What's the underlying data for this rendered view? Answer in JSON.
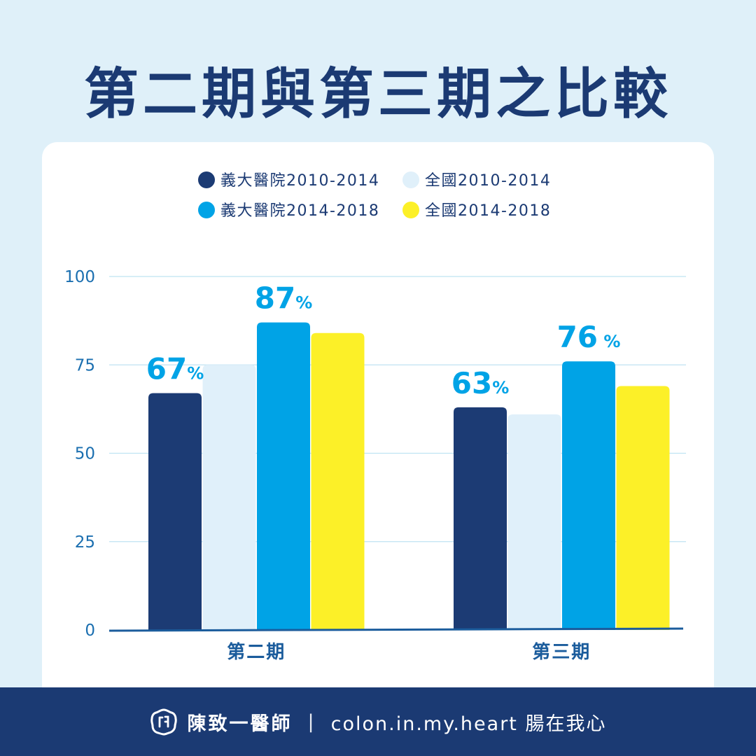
{
  "title": "第二期與第三期之比較",
  "footer": {
    "brand": "陳致一醫師",
    "separator": "|",
    "handle": "colon.in.my.heart 腸在我心",
    "logo_icon": "intestine-logo-icon"
  },
  "colors": {
    "background": "#dff0f9",
    "title": "#1b3a73",
    "navy": "#1c3b74",
    "light_blue": "#e0f0fa",
    "bright_blue": "#00a3e6",
    "yellow": "#fcf028",
    "grid": "#bfe3f2",
    "axis": "#1b5c9c",
    "tick_text": "#1b6fb0",
    "data_label": "#00a3e6"
  },
  "chart_data": {
    "type": "bar",
    "categories": [
      "第二期",
      "第三期"
    ],
    "series": [
      {
        "name": "義大醫院2010-2014",
        "values": [
          67,
          63
        ],
        "color": "#1c3b74",
        "label_pct": true
      },
      {
        "name": "全國2010-2014",
        "values": [
          75,
          61
        ],
        "color": "#e0f0fa",
        "label_pct": false
      },
      {
        "name": "義大醫院2014-2018",
        "values": [
          87,
          76
        ],
        "color": "#00a3e6",
        "label_pct": true
      },
      {
        "name": "全國2014-2018",
        "values": [
          84,
          69
        ],
        "color": "#fcf028",
        "label_pct": false
      }
    ],
    "data_labels": [
      {
        "series": 0,
        "category": 0,
        "number": "67",
        "suffix": "%"
      },
      {
        "series": 2,
        "category": 0,
        "number": "87",
        "suffix": "%"
      },
      {
        "series": 0,
        "category": 1,
        "number": "63",
        "suffix": "%"
      },
      {
        "series": 2,
        "category": 1,
        "number": "76",
        "suffix": " %"
      }
    ],
    "yticks": [
      "0",
      "25",
      "50",
      "75",
      "100"
    ],
    "ylim": [
      0,
      100
    ],
    "grid": true,
    "legend": "top",
    "xlabel": "",
    "ylabel": ""
  }
}
